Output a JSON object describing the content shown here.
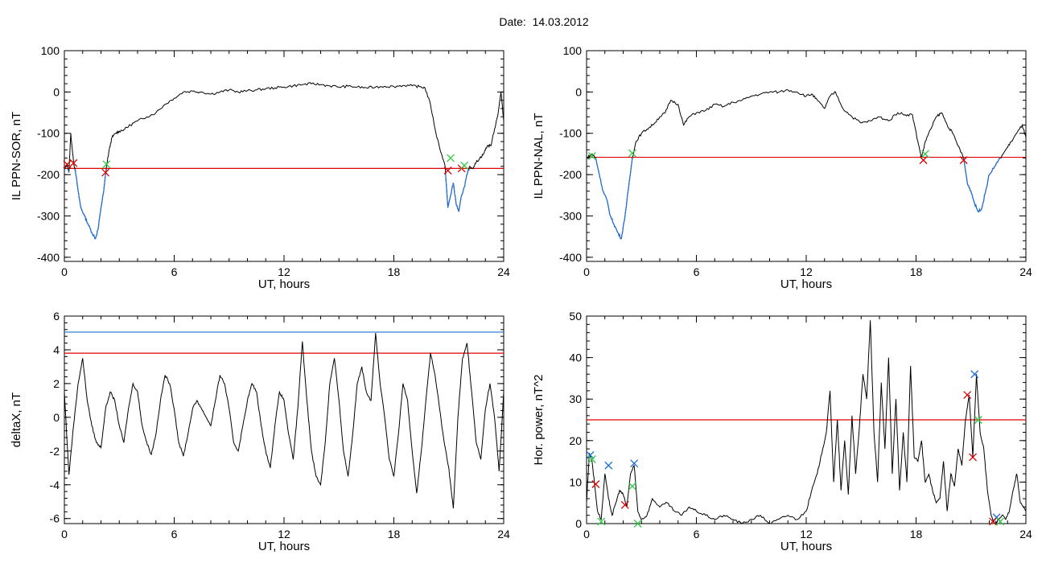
{
  "figure": {
    "title": "Date:  14.03.2012",
    "colors": {
      "trace": "#000000",
      "threshold_red": "#e00000",
      "threshold_blue": "#1f6fd6",
      "highlight": "#1f6fd6",
      "marker_green": "#2ecc40"
    }
  },
  "chart_data": [
    {
      "type": "line",
      "id": "il-ppn-sor",
      "title": "",
      "xlabel": "UT, hours",
      "ylabel": "IL PPN-SOR, nT",
      "xlim": [
        0,
        24
      ],
      "ylim": [
        -410,
        100
      ],
      "xticks": [
        0,
        6,
        12,
        18,
        24
      ],
      "yticks": [
        100,
        0,
        -100,
        -200,
        -300,
        -400
      ],
      "grid": false,
      "threshold": -185,
      "highlight_below_threshold": true,
      "x": [
        0,
        0.15,
        0.25,
        0.35,
        0.5,
        0.6,
        0.75,
        0.9,
        1.1,
        1.3,
        1.5,
        1.7,
        1.85,
        2.0,
        2.15,
        2.3,
        2.45,
        2.6,
        2.8,
        3.0,
        3.3,
        3.6,
        4.0,
        4.5,
        5.0,
        5.5,
        6.0,
        6.5,
        7.0,
        7.5,
        8.0,
        8.5,
        9.0,
        9.5,
        10.0,
        10.5,
        11.0,
        11.5,
        12.0,
        12.5,
        13.0,
        13.5,
        14.0,
        14.5,
        15.0,
        15.5,
        16.0,
        16.5,
        17.0,
        17.5,
        18.0,
        18.5,
        19.0,
        19.4,
        19.7,
        20.0,
        20.3,
        20.6,
        20.8,
        20.95,
        21.1,
        21.25,
        21.4,
        21.55,
        21.7,
        21.85,
        22.0,
        22.15,
        22.3,
        22.5,
        22.7,
        22.9,
        23.1,
        23.3,
        23.5,
        23.7,
        23.85,
        24.0
      ],
      "values": [
        -190,
        -175,
        -195,
        -100,
        -170,
        -190,
        -240,
        -280,
        -300,
        -320,
        -340,
        -355,
        -330,
        -280,
        -240,
        -180,
        -140,
        -110,
        -100,
        -95,
        -90,
        -80,
        -70,
        -60,
        -50,
        -30,
        -15,
        0,
        2,
        0,
        -5,
        0,
        5,
        0,
        3,
        5,
        8,
        10,
        12,
        15,
        18,
        20,
        18,
        15,
        12,
        14,
        12,
        10,
        12,
        14,
        13,
        16,
        15,
        13,
        10,
        -30,
        -100,
        -150,
        -180,
        -280,
        -250,
        -220,
        -270,
        -290,
        -250,
        -230,
        -200,
        -180,
        -185,
        -170,
        -160,
        -150,
        -130,
        -130,
        -90,
        -50,
        0,
        -70
      ],
      "markers_red": [
        [
          0.15,
          -175
        ],
        [
          0.5,
          -172
        ],
        [
          2.25,
          -195
        ],
        [
          20.95,
          -190
        ],
        [
          21.7,
          -185
        ]
      ],
      "markers_green": [
        [
          2.3,
          -175
        ],
        [
          21.1,
          -160
        ],
        [
          21.85,
          -178
        ]
      ]
    },
    {
      "type": "line",
      "id": "il-ppn-nal",
      "title": "",
      "xlabel": "UT, hours",
      "ylabel": "IL PPN-NAL, nT",
      "xlim": [
        0,
        24
      ],
      "ylim": [
        -410,
        100
      ],
      "xticks": [
        0,
        6,
        12,
        18,
        24
      ],
      "yticks": [
        100,
        0,
        -100,
        -200,
        -300,
        -400
      ],
      "grid": false,
      "threshold": -158,
      "highlight_below_threshold": true,
      "x": [
        0,
        0.15,
        0.3,
        0.5,
        0.7,
        0.9,
        1.1,
        1.3,
        1.5,
        1.7,
        1.9,
        2.1,
        2.3,
        2.5,
        2.7,
        3.0,
        3.3,
        3.6,
        4.0,
        4.3,
        4.6,
        5.0,
        5.3,
        5.6,
        6.0,
        6.5,
        7.0,
        7.5,
        8.0,
        8.5,
        9.0,
        9.5,
        10.0,
        10.5,
        11.0,
        11.5,
        12.0,
        12.3,
        12.6,
        13.0,
        13.3,
        13.6,
        14.0,
        14.5,
        15.0,
        15.5,
        16.0,
        16.5,
        17.0,
        17.4,
        17.8,
        18.1,
        18.3,
        18.5,
        18.8,
        19.1,
        19.4,
        19.7,
        20.0,
        20.3,
        20.6,
        20.8,
        21.0,
        21.2,
        21.4,
        21.6,
        21.8,
        22.0,
        22.3,
        22.6,
        22.9,
        23.2,
        23.5,
        23.8,
        24.0
      ],
      "values": [
        -160,
        -155,
        -150,
        -160,
        -200,
        -240,
        -260,
        -300,
        -320,
        -340,
        -355,
        -300,
        -230,
        -160,
        -120,
        -100,
        -90,
        -80,
        -60,
        -50,
        -20,
        -30,
        -80,
        -60,
        -50,
        -45,
        -30,
        -35,
        -25,
        -20,
        -10,
        -5,
        0,
        0,
        5,
        0,
        -10,
        -5,
        -20,
        -40,
        -10,
        0,
        -40,
        -60,
        -75,
        -70,
        -60,
        -70,
        -50,
        -55,
        -55,
        -120,
        -160,
        -120,
        -90,
        -60,
        -50,
        -80,
        -100,
        -130,
        -160,
        -220,
        -240,
        -270,
        -290,
        -280,
        -240,
        -200,
        -180,
        -160,
        -140,
        -120,
        -100,
        -80,
        -110
      ],
      "markers_red": [
        [
          18.4,
          -165
        ],
        [
          20.6,
          -165
        ]
      ],
      "markers_green": [
        [
          0.3,
          -155
        ],
        [
          2.5,
          -148
        ],
        [
          18.5,
          -150
        ]
      ]
    },
    {
      "type": "line",
      "id": "deltax",
      "title": "",
      "xlabel": "UT, hours",
      "ylabel": "deltaX, nT",
      "xlim": [
        0,
        24
      ],
      "ylim": [
        -6.3,
        6
      ],
      "xticks": [
        0,
        6,
        12,
        18,
        24
      ],
      "yticks": [
        6,
        4,
        2,
        0,
        -2,
        -4,
        -6
      ],
      "grid": false,
      "threshold": 3.8,
      "threshold_blue": 5.05,
      "x": [
        0,
        0.25,
        0.5,
        0.75,
        1.0,
        1.25,
        1.5,
        1.75,
        2.0,
        2.25,
        2.5,
        2.75,
        3.0,
        3.25,
        3.5,
        3.75,
        4.0,
        4.25,
        4.5,
        4.75,
        5.0,
        5.25,
        5.5,
        5.75,
        6.0,
        6.25,
        6.5,
        6.75,
        7.0,
        7.25,
        7.5,
        7.75,
        8.0,
        8.25,
        8.5,
        8.75,
        9.0,
        9.25,
        9.5,
        9.75,
        10.0,
        10.25,
        10.5,
        10.75,
        11.0,
        11.25,
        11.5,
        11.75,
        12.0,
        12.25,
        12.5,
        12.75,
        13.0,
        13.25,
        13.5,
        13.75,
        14.0,
        14.25,
        14.5,
        14.75,
        15.0,
        15.25,
        15.5,
        15.75,
        16.0,
        16.25,
        16.5,
        16.75,
        17.0,
        17.25,
        17.5,
        17.75,
        18.0,
        18.25,
        18.5,
        18.75,
        19.0,
        19.25,
        19.5,
        19.75,
        20.0,
        20.25,
        20.5,
        20.75,
        21.0,
        21.25,
        21.5,
        21.75,
        22.0,
        22.25,
        22.5,
        22.75,
        23.0,
        23.25,
        23.5,
        23.75,
        24.0
      ],
      "values": [
        1.5,
        -3.4,
        -0.5,
        2.0,
        3.5,
        1.0,
        -0.5,
        -1.5,
        -1.8,
        0.5,
        1.5,
        1.0,
        -0.5,
        -1.5,
        0.5,
        2.0,
        1.5,
        -0.5,
        -1.5,
        -2.2,
        -1.0,
        1.0,
        2.5,
        2.0,
        0.5,
        -1.5,
        -2.3,
        -1.0,
        0.5,
        1.0,
        0.5,
        0.0,
        -0.5,
        1.0,
        2.5,
        2.0,
        0.5,
        -1.5,
        -2.0,
        -0.5,
        1.0,
        2.0,
        1.5,
        -0.5,
        -2.0,
        -3.0,
        -0.5,
        1.5,
        1.0,
        -1.0,
        -2.5,
        0.5,
        4.5,
        1.0,
        -2.0,
        -3.5,
        -4.0,
        -1.5,
        2.0,
        3.5,
        1.0,
        -2.0,
        -3.5,
        -1.0,
        2.0,
        3.0,
        1.5,
        1.0,
        5.0,
        2.0,
        0.0,
        -2.5,
        -3.5,
        -1.0,
        2.0,
        1.0,
        -2.0,
        -4.5,
        -2.0,
        1.0,
        3.8,
        2.5,
        0.5,
        -1.5,
        -3.0,
        -5.4,
        0.0,
        3.5,
        4.4,
        1.5,
        -1.5,
        -2.5,
        0.5,
        2.0,
        0.0,
        -3.2,
        1.5
      ]
    },
    {
      "type": "line",
      "id": "hor-power",
      "title": "",
      "xlabel": "UT, hours",
      "ylabel": "Hor. power, nT^2",
      "xlim": [
        0,
        24
      ],
      "ylim": [
        0,
        50
      ],
      "xticks": [
        0,
        6,
        12,
        18,
        24
      ],
      "yticks": [
        50,
        40,
        30,
        20,
        10,
        0
      ],
      "grid": false,
      "threshold": 25,
      "x": [
        0,
        0.15,
        0.3,
        0.45,
        0.6,
        0.8,
        1.0,
        1.2,
        1.4,
        1.6,
        1.8,
        2.0,
        2.2,
        2.4,
        2.6,
        2.8,
        3.0,
        3.3,
        3.6,
        4.0,
        4.4,
        4.8,
        5.2,
        5.6,
        6.0,
        6.5,
        7.0,
        7.5,
        8.0,
        8.5,
        9.0,
        9.5,
        10.0,
        10.5,
        11.0,
        11.5,
        12.0,
        12.3,
        12.6,
        12.9,
        13.1,
        13.3,
        13.5,
        13.7,
        13.9,
        14.1,
        14.3,
        14.5,
        14.7,
        14.9,
        15.1,
        15.3,
        15.5,
        15.7,
        15.9,
        16.1,
        16.3,
        16.5,
        16.7,
        16.9,
        17.1,
        17.3,
        17.5,
        17.7,
        17.9,
        18.1,
        18.3,
        18.5,
        18.7,
        18.9,
        19.1,
        19.3,
        19.5,
        19.7,
        19.9,
        20.1,
        20.3,
        20.5,
        20.7,
        20.9,
        21.1,
        21.3,
        21.5,
        21.7,
        21.9,
        22.1,
        22.3,
        22.5,
        22.7,
        22.9,
        23.1,
        23.3,
        23.5,
        23.7,
        24.0
      ],
      "values": [
        5,
        17,
        15,
        9,
        3,
        1,
        12,
        6,
        2,
        5,
        8,
        7,
        4,
        12,
        14,
        3,
        1,
        2,
        6,
        4,
        5,
        3,
        2,
        4,
        3,
        2,
        1,
        2,
        1,
        0,
        1,
        2,
        0,
        1,
        2,
        1,
        3,
        8,
        12,
        18,
        22,
        32,
        10,
        25,
        8,
        20,
        7,
        26,
        12,
        23,
        36,
        30,
        49,
        22,
        10,
        34,
        18,
        40,
        12,
        30,
        8,
        22,
        10,
        38,
        16,
        15,
        20,
        10,
        12,
        8,
        5,
        6,
        15,
        3,
        12,
        9,
        18,
        14,
        25,
        31,
        16,
        36,
        22,
        18,
        8,
        2,
        0,
        1,
        2,
        1,
        3,
        8,
        12,
        5,
        3
      ],
      "markers_red": [
        [
          0.5,
          9.5
        ],
        [
          2.1,
          4.5
        ],
        [
          20.8,
          31
        ],
        [
          21.1,
          16
        ],
        [
          22.2,
          0.5
        ]
      ],
      "markers_blue": [
        [
          0.2,
          16.5
        ],
        [
          1.2,
          14
        ],
        [
          2.6,
          14.5
        ],
        [
          21.2,
          36
        ],
        [
          22.4,
          1.5
        ]
      ],
      "markers_green": [
        [
          0.3,
          15.5
        ],
        [
          0.8,
          0.5
        ],
        [
          2.5,
          9
        ],
        [
          2.8,
          0
        ],
        [
          21.4,
          25
        ],
        [
          22.6,
          0.5
        ]
      ]
    }
  ]
}
